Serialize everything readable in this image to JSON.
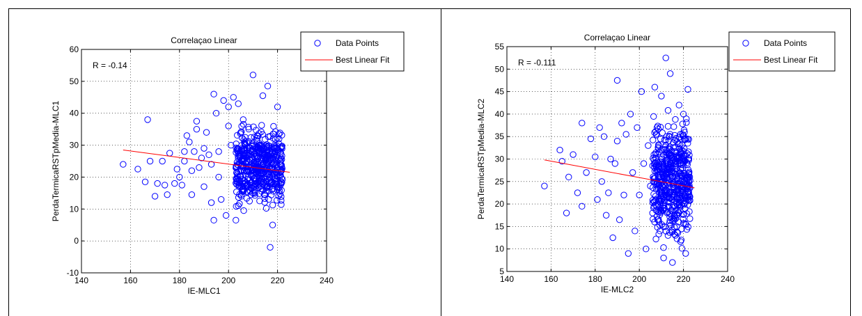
{
  "chart_data": [
    {
      "type": "scatter",
      "title": "Correlaçao Linear",
      "xlabel": "IE-MLC1",
      "ylabel": "PerdaTermicaRSTpMedia-MLC1",
      "annotation": "R = -0.14",
      "xlim": [
        140,
        240
      ],
      "ylim": [
        -10,
        60
      ],
      "xticks": [
        "140",
        "160",
        "180",
        "200",
        "220",
        "240"
      ],
      "yticks": [
        "-10",
        "0",
        "10",
        "20",
        "30",
        "40",
        "50",
        "60"
      ],
      "grid": true,
      "legend_position": "outside-top-right",
      "legend": [
        {
          "label": "Data Points",
          "marker": "circle",
          "color": "#0000ff"
        },
        {
          "label": "Best Linear Fit",
          "marker": "line",
          "color": "#ff0000"
        }
      ],
      "series": [
        {
          "name": "Data Points",
          "kind": "scatter",
          "color": "#0000ff",
          "x": [
            157,
            163,
            166,
            167,
            168,
            170,
            171,
            173,
            174,
            175,
            176,
            178,
            179,
            180,
            181,
            182,
            182,
            183,
            184,
            185,
            185,
            186,
            187,
            187,
            188,
            189,
            190,
            190,
            191,
            192,
            193,
            193,
            194,
            194,
            195,
            196,
            196,
            197,
            198,
            199,
            200,
            200,
            201,
            202,
            203,
            204,
            205,
            206,
            210,
            214,
            216,
            217,
            218,
            220
          ],
          "y": [
            24,
            22.5,
            18.5,
            38,
            25,
            14,
            18,
            25,
            17.5,
            14.5,
            27.5,
            18,
            22.5,
            20,
            17.5,
            25,
            28,
            33,
            31,
            22,
            14.5,
            28,
            37.5,
            35,
            23,
            26,
            17,
            29,
            34,
            27,
            24,
            12,
            46,
            6.5,
            40,
            28,
            20,
            13,
            44,
            8,
            42,
            36,
            30,
            45,
            6.5,
            43,
            34,
            38,
            52,
            45.5,
            48.5,
            -2,
            5,
            42
          ]
        },
        {
          "name": "Best Linear Fit",
          "kind": "line",
          "color": "#ff0000",
          "x": [
            157,
            225
          ],
          "y": [
            28.5,
            21.5
          ]
        }
      ]
    },
    {
      "type": "scatter",
      "title": "Correlaçao Linear",
      "xlabel": "IE-MLC2",
      "ylabel": "PerdaTermicaRSTpMedia-MLC2",
      "annotation": "R = -0.111",
      "xlim": [
        140,
        240
      ],
      "ylim": [
        5,
        55
      ],
      "xticks": [
        "140",
        "160",
        "180",
        "200",
        "220",
        "240"
      ],
      "yticks": [
        "5",
        "10",
        "15",
        "20",
        "25",
        "30",
        "35",
        "40",
        "45",
        "50",
        "55"
      ],
      "grid": true,
      "legend_position": "outside-top-right",
      "legend": [
        {
          "label": "Data Points",
          "marker": "circle",
          "color": "#0000ff"
        },
        {
          "label": "Best Linear Fit",
          "marker": "line",
          "color": "#ff0000"
        }
      ],
      "series": [
        {
          "name": "Data Points",
          "kind": "scatter",
          "color": "#0000ff",
          "x": [
            157,
            164,
            165,
            167,
            168,
            170,
            172,
            174,
            174,
            176,
            178,
            180,
            181,
            182,
            183,
            184,
            185,
            186,
            187,
            188,
            189,
            190,
            190,
            191,
            192,
            193,
            194,
            195,
            196,
            197,
            198,
            199,
            200,
            201,
            202,
            203,
            204,
            205,
            206,
            207,
            208,
            209,
            210,
            211,
            212,
            213,
            214,
            215,
            216,
            217,
            218,
            219,
            220,
            221,
            222
          ],
          "y": [
            24,
            32,
            29.5,
            18,
            26,
            31,
            22.5,
            38,
            19.5,
            27,
            34.5,
            30.5,
            21,
            37,
            25,
            35,
            17.5,
            22.5,
            30,
            12.5,
            29,
            47.5,
            34,
            16.5,
            38,
            22,
            35.5,
            9,
            40,
            27,
            14,
            37,
            22,
            45,
            29,
            10,
            33,
            24,
            18,
            46,
            37,
            21,
            44,
            8,
            52.5,
            13,
            49,
            7,
            30,
            15,
            42,
            12,
            40,
            9,
            45.5
          ]
        },
        {
          "name": "Best Linear Fit",
          "kind": "line",
          "color": "#ff0000",
          "x": [
            157,
            225
          ],
          "y": [
            29.8,
            23.6
          ]
        }
      ]
    }
  ]
}
